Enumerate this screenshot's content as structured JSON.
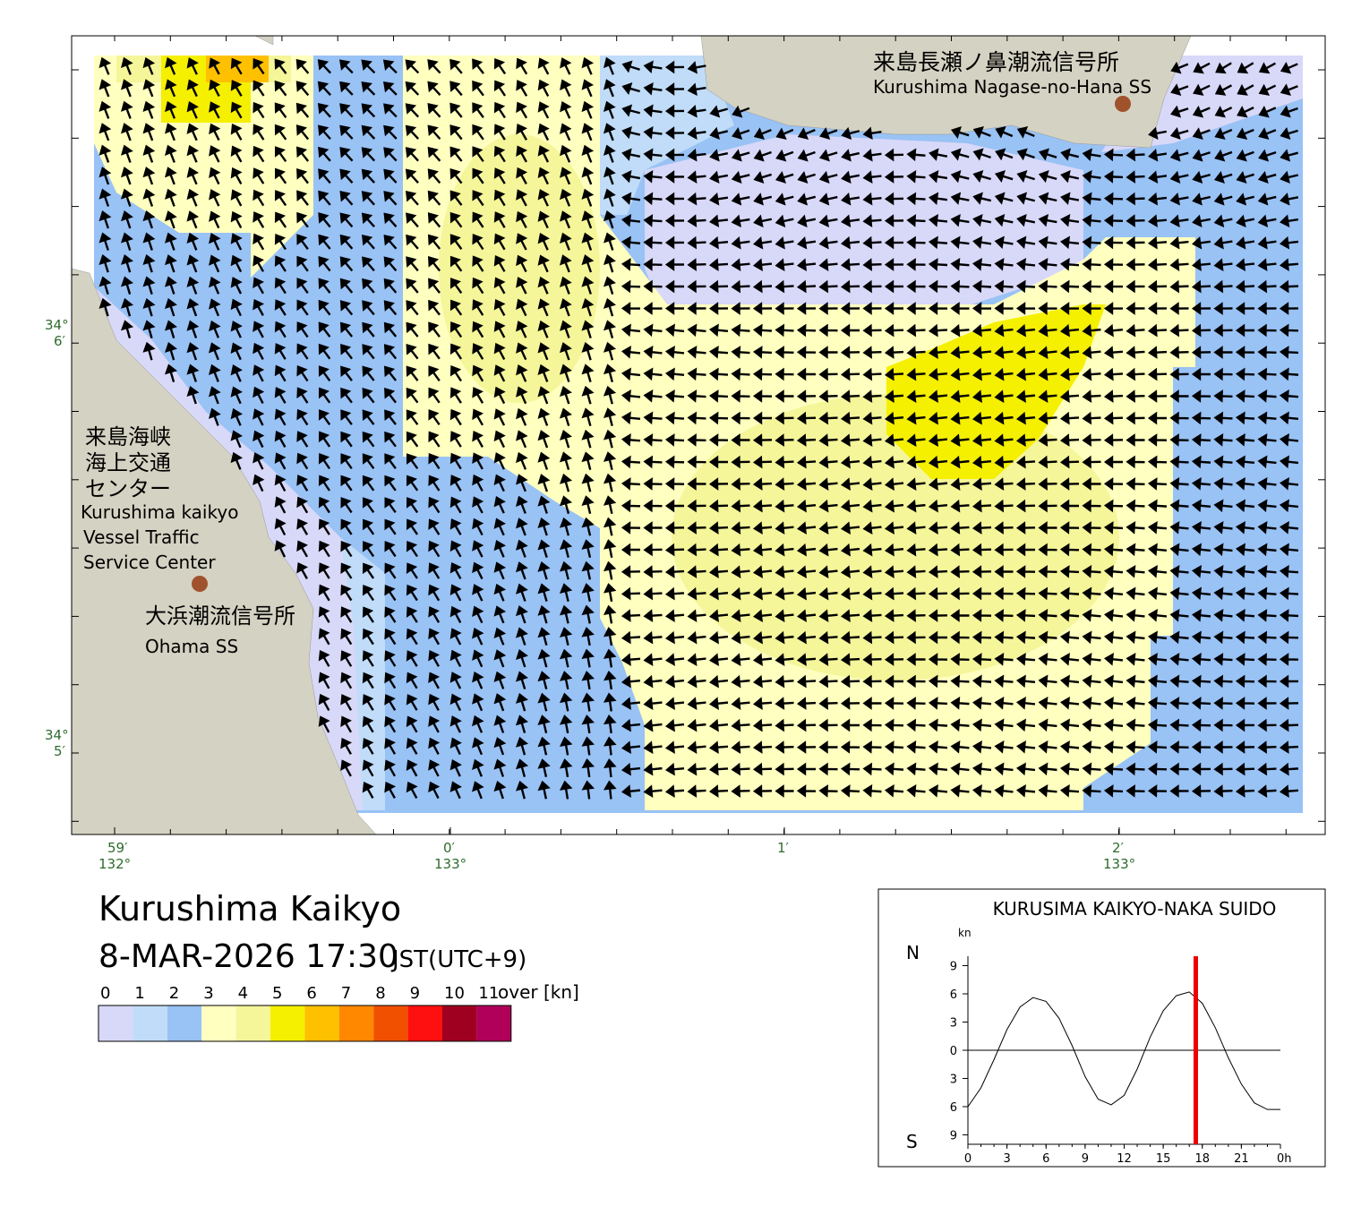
{
  "map": {
    "lat_labels": [
      {
        "deg": "34°",
        "min": "6′"
      },
      {
        "deg": "34°",
        "min": "5′"
      }
    ],
    "lon_labels": [
      {
        "min": "59′",
        "deg": "132°"
      },
      {
        "min": "0′",
        "deg": "133°"
      },
      {
        "min": "1′"
      },
      {
        "min": "2′",
        "deg": "133°"
      }
    ],
    "places": {
      "nagase_jp": "来島長瀬ノ鼻潮流信号所",
      "nagase_en": "Kurushima Nagase-no-Hana SS",
      "vts_jp": [
        "来島海峡",
        "海上交通",
        "センター"
      ],
      "vts_en": [
        "Kurushima kaikyo",
        "Vessel Traffic",
        "Service Center"
      ],
      "ohama_jp": "大浜潮流信号所",
      "ohama_en": "Ohama SS"
    }
  },
  "header": {
    "title": "Kurushima Kaikyo",
    "datetime": "8-MAR-2026 17:30",
    "timezone": "JST(UTC+9)"
  },
  "legend": {
    "labels": [
      0,
      1,
      2,
      3,
      4,
      5,
      6,
      7,
      8,
      9,
      10,
      11
    ],
    "unit": "over [kn]",
    "colors": [
      "#d8d8f8",
      "#c0dcf8",
      "#99c2f5",
      "#ffffc0",
      "#f5f59a",
      "#f5ef00",
      "#ffc000",
      "#ff8800",
      "#f05000",
      "#ff1010",
      "#a00020",
      "#b0005a"
    ]
  },
  "chart_data": {
    "type": "line",
    "title": "KURUSIMA KAIKYO-NAKA SUIDO",
    "y_unit": "kn",
    "north_label": "N",
    "south_label": "S",
    "x": [
      0,
      1,
      2,
      3,
      4,
      5,
      6,
      7,
      8,
      9,
      10,
      11,
      12,
      13,
      14,
      15,
      16,
      17,
      18,
      19,
      20,
      21,
      22,
      23,
      24
    ],
    "series": [
      {
        "color": "#000000",
        "values": [
          -6,
          -4,
          -1,
          2.2,
          4.6,
          5.6,
          5.2,
          3.4,
          0.5,
          -2.8,
          -5.2,
          -5.8,
          -4.8,
          -2,
          1.4,
          4.2,
          5.8,
          6.2,
          5,
          2.4,
          -0.8,
          -3.6,
          -5.6,
          -6.3,
          -6.3
        ]
      }
    ],
    "xlim": [
      0,
      24
    ],
    "xticks": [
      0,
      3,
      6,
      9,
      12,
      15,
      18,
      21,
      {
        "value": 24,
        "label": "0h"
      }
    ],
    "ylim": [
      -10,
      10
    ],
    "yticks": [
      9,
      6,
      3,
      0,
      {
        "value": -3,
        "label": "3"
      },
      {
        "value": -6,
        "label": "6"
      },
      {
        "value": -9,
        "label": "9"
      }
    ],
    "current_time": 17.5,
    "current_color": "#ee0000"
  }
}
